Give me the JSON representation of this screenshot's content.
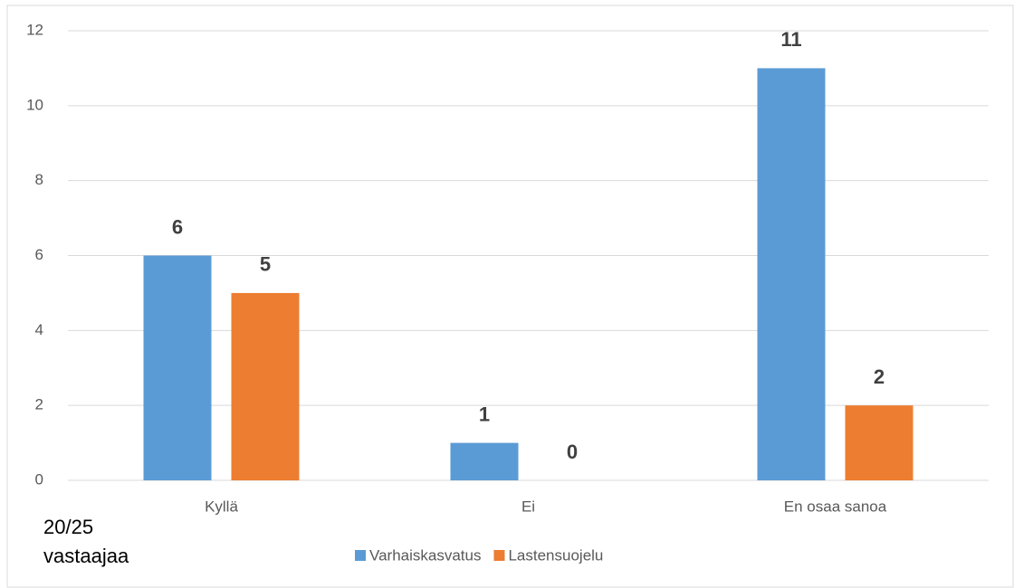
{
  "chart_data": {
    "type": "bar",
    "categories": [
      "Kyllä",
      "Ei",
      "En osaa sanoa"
    ],
    "series": [
      {
        "name": "Varhaiskasvatus",
        "color": "#5b9bd5",
        "values": [
          6,
          1,
          11
        ]
      },
      {
        "name": "Lastensuojelu",
        "color": "#ed7d31",
        "values": [
          5,
          0,
          2
        ]
      }
    ],
    "ylim": [
      0,
      12
    ],
    "yticks": [
      0,
      2,
      4,
      6,
      8,
      10,
      12
    ],
    "grid": true,
    "legend": "bottom",
    "annotation": [
      "20/25",
      "vastaajaa"
    ]
  }
}
